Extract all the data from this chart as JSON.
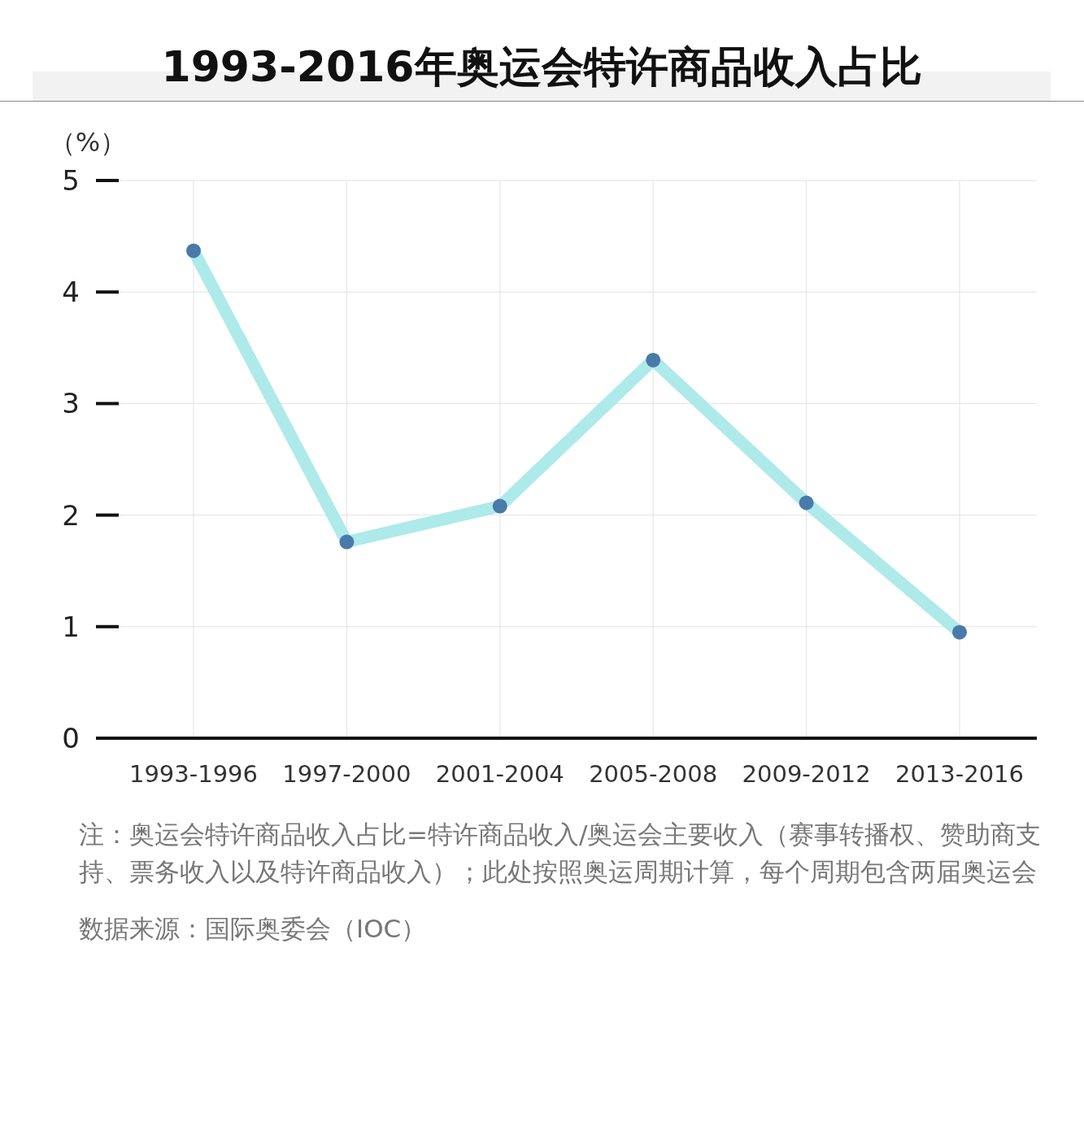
{
  "chart_data": {
    "type": "line",
    "title": "1993-2016年奥运会特许商品收入占比",
    "ylabel": "（%）",
    "categories": [
      "1993-1996",
      "1997-2000",
      "2001-2004",
      "2005-2008",
      "2009-2012",
      "2013-2016"
    ],
    "series": [
      {
        "color": "#aeeaea",
        "values": [
          4.37,
          1.76,
          2.08,
          3.39,
          2.11,
          0.95
        ]
      }
    ],
    "ylim": [
      0,
      5
    ],
    "yticks": [
      0,
      1,
      2,
      3,
      4,
      5
    ],
    "grid": true,
    "marker": "circle",
    "annotations": [
      "注：奥运会特许商品收入占比=特许商品收入/奥运会主要收入（赛事转播权、赞助商支持、票务收入以及特许商品收入）；此处按照奥运周期计算，每个周期包含两届奥运会",
      "数据来源：国际奥委会（IOC）"
    ]
  }
}
